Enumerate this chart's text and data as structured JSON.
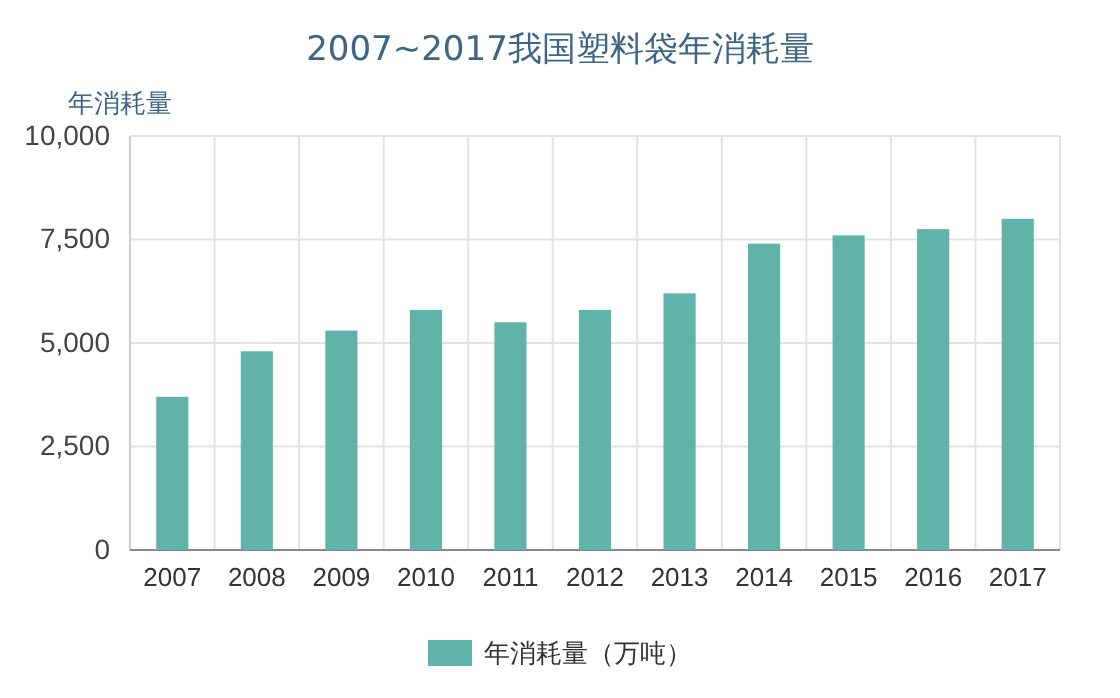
{
  "chart_data": {
    "type": "bar",
    "title": "2007~2017我国塑料袋年消耗量",
    "ylabel": "年消耗量",
    "categories": [
      "2007",
      "2008",
      "2009",
      "2010",
      "2011",
      "2012",
      "2013",
      "2014",
      "2015",
      "2016",
      "2017"
    ],
    "series": [
      {
        "name": "年消耗量（万吨）",
        "color": "#5fb3a8",
        "values": [
          3700,
          4800,
          5300,
          5800,
          5500,
          5800,
          6200,
          7400,
          7600,
          7750,
          8000
        ]
      }
    ],
    "ylim": [
      0,
      10000
    ],
    "yticks": [
      {
        "value": 0,
        "label": "0"
      },
      {
        "value": 2500,
        "label": "2,500"
      },
      {
        "value": 5000,
        "label": "5,000"
      },
      {
        "value": 7500,
        "label": "7,500"
      },
      {
        "value": 10000,
        "label": "10,000"
      }
    ],
    "grid": true,
    "legend": "bottom"
  }
}
